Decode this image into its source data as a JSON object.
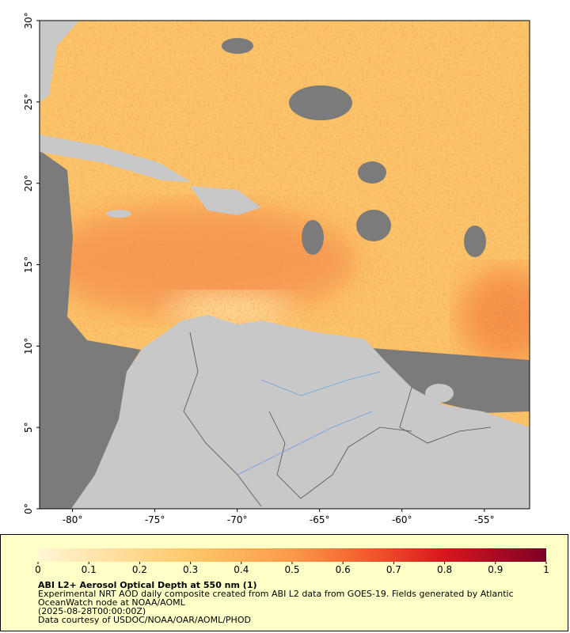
{
  "map": {
    "lon_range": [
      -82,
      -52.25
    ],
    "lat_range": [
      0,
      30
    ],
    "lon_ticks": [
      {
        "value": -80,
        "label": "-80°"
      },
      {
        "value": -75,
        "label": "-75°"
      },
      {
        "value": -70,
        "label": "-70°"
      },
      {
        "value": -65,
        "label": "-65°"
      },
      {
        "value": -60,
        "label": "-60°"
      },
      {
        "value": -55,
        "label": "-55°"
      }
    ],
    "lat_ticks": [
      {
        "value": 0,
        "label": "0°"
      },
      {
        "value": 5,
        "label": "5°"
      },
      {
        "value": 10,
        "label": "10°"
      },
      {
        "value": 15,
        "label": "15°"
      },
      {
        "value": 20,
        "label": "20°"
      },
      {
        "value": 25,
        "label": "25°"
      },
      {
        "value": 30,
        "label": "30°"
      }
    ]
  },
  "colorbar": {
    "range": [
      0,
      1
    ],
    "ticks": [
      0,
      0.1,
      0.2,
      0.3,
      0.4,
      0.5,
      0.6,
      0.7,
      0.8,
      0.9,
      1
    ]
  },
  "caption": {
    "title": "ABI L2+ Aerosol Optical Depth at 550 nm (1)",
    "description": "Experimental NRT AOD daily composite created from ABI L2 data from GOES-19. Fields generated by Atlantic OceanWatch node at NOAA/AOML",
    "timestamp": "(2025-08-28T00:00:00Z)",
    "credit": "Data courtesy of USDOC/NOAA/OAR/AOML/PHOD"
  }
}
